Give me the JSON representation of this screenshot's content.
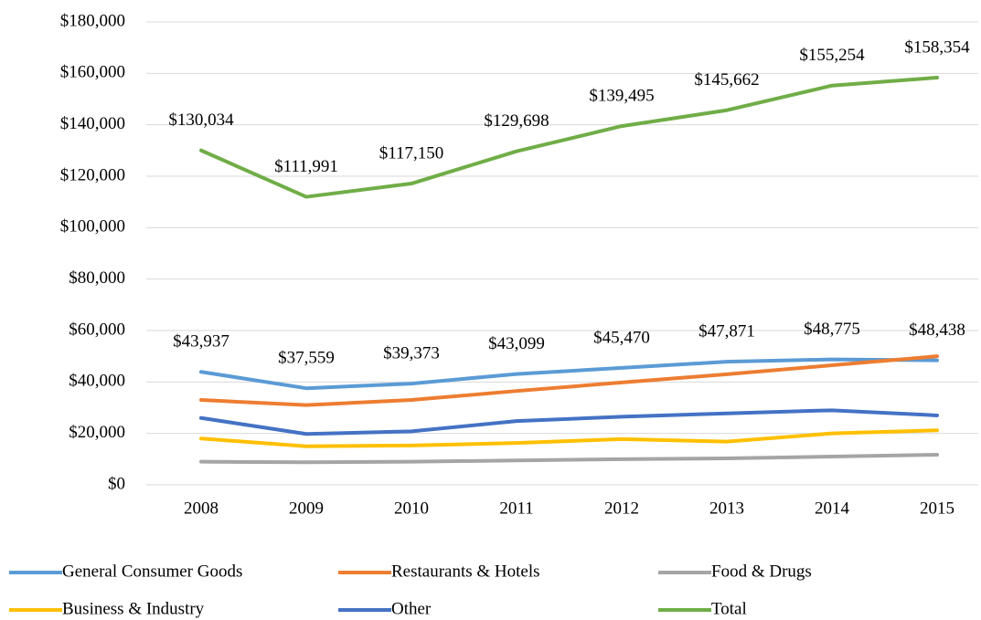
{
  "chart_data": {
    "type": "line",
    "categories": [
      "2008",
      "2009",
      "2010",
      "2011",
      "2012",
      "2013",
      "2014",
      "2015"
    ],
    "series": [
      {
        "name": "General Consumer Goods",
        "color": "#5b9bd5",
        "values": [
          43937,
          37559,
          39373,
          43099,
          45470,
          47871,
          48775,
          48438
        ],
        "value_labels": [
          "$43,937",
          "$37,559",
          "$39,373",
          "$43,099",
          "$45,470",
          "$47,871",
          "$48,775",
          "$48,438"
        ]
      },
      {
        "name": "Restaurants & Hotels",
        "color": "#ed7d31",
        "values": [
          33000,
          31000,
          33000,
          36500,
          39800,
          43000,
          46500,
          50000
        ]
      },
      {
        "name": "Food & Drugs",
        "color": "#a5a5a5",
        "values": [
          9000,
          8800,
          9000,
          9500,
          10000,
          10300,
          11000,
          11700
        ]
      },
      {
        "name": "Business & Industry",
        "color": "#ffc000",
        "values": [
          18000,
          15000,
          15300,
          16300,
          17800,
          16800,
          20000,
          21200
        ]
      },
      {
        "name": "Other",
        "color": "#4472c4",
        "values": [
          26000,
          19800,
          20800,
          24800,
          26500,
          27800,
          29000,
          27000
        ]
      },
      {
        "name": "Total",
        "color": "#70ad47",
        "values": [
          130034,
          111991,
          117150,
          129698,
          139495,
          145662,
          155254,
          158354
        ],
        "value_labels": [
          "$130,034",
          "$111,991",
          "$117,150",
          "$129,698",
          "$139,495",
          "$145,662",
          "$155,254",
          "$158,354"
        ]
      }
    ],
    "ylim": [
      0,
      180000
    ],
    "yticks": [
      {
        "value": 0,
        "label": "$0"
      },
      {
        "value": 20000,
        "label": "$20,000"
      },
      {
        "value": 40000,
        "label": "$40,000"
      },
      {
        "value": 60000,
        "label": "$60,000"
      },
      {
        "value": 80000,
        "label": "$80,000"
      },
      {
        "value": 100000,
        "label": "$100,000"
      },
      {
        "value": 120000,
        "label": "$120,000"
      },
      {
        "value": 140000,
        "label": "$140,000"
      },
      {
        "value": 160000,
        "label": "$160,000"
      },
      {
        "value": 180000,
        "label": "$180,000"
      }
    ],
    "grid": true,
    "legend": "bottom"
  }
}
